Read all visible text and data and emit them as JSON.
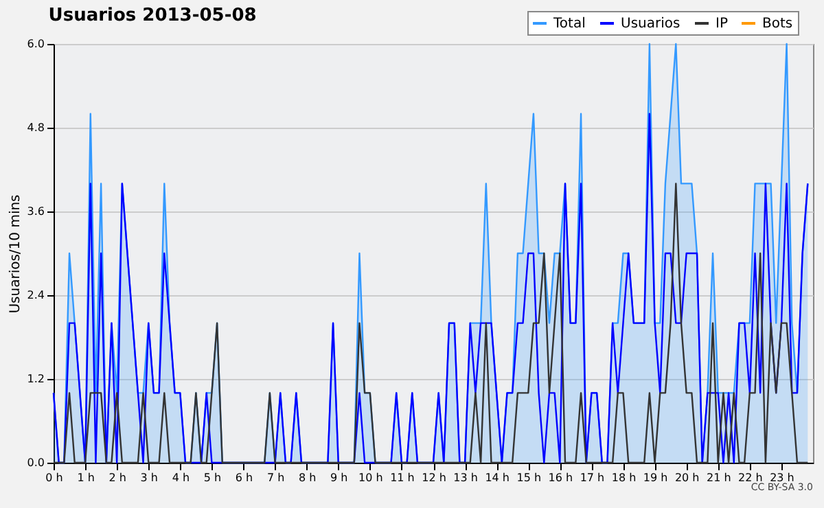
{
  "chart_data": {
    "type": "line",
    "title": "Usuarios  2013-05-08",
    "ylabel": "Usuarios/10 mins",
    "x": [
      0,
      0.167,
      0.333,
      0.5,
      0.667,
      0.833,
      1,
      1.167,
      1.333,
      1.5,
      1.667,
      1.833,
      2,
      2.167,
      2.333,
      2.5,
      2.667,
      2.833,
      3,
      3.167,
      3.333,
      3.5,
      3.667,
      3.833,
      4,
      4.167,
      4.333,
      4.5,
      4.667,
      4.833,
      5,
      5.167,
      5.333,
      5.5,
      5.667,
      5.833,
      6,
      6.167,
      6.333,
      6.5,
      6.667,
      6.833,
      7,
      7.167,
      7.333,
      7.5,
      7.667,
      7.833,
      8,
      8.167,
      8.333,
      8.5,
      8.667,
      8.833,
      9,
      9.167,
      9.333,
      9.5,
      9.667,
      9.833,
      10,
      10.167,
      10.333,
      10.5,
      10.667,
      10.833,
      11,
      11.167,
      11.333,
      11.5,
      11.667,
      11.833,
      12,
      12.167,
      12.333,
      12.5,
      12.667,
      12.833,
      13,
      13.167,
      13.333,
      13.5,
      13.667,
      13.833,
      14,
      14.167,
      14.333,
      14.5,
      14.667,
      14.833,
      15,
      15.167,
      15.333,
      15.5,
      15.667,
      15.833,
      16,
      16.167,
      16.333,
      16.5,
      16.667,
      16.833,
      17,
      17.167,
      17.333,
      17.5,
      17.667,
      17.833,
      18,
      18.167,
      18.333,
      18.5,
      18.667,
      18.833,
      19,
      19.167,
      19.333,
      19.5,
      19.667,
      19.833,
      20,
      20.167,
      20.333,
      20.5,
      20.667,
      20.833,
      21,
      21.167,
      21.333,
      21.5,
      21.667,
      21.833,
      22,
      22.167,
      22.333,
      22.5,
      22.667,
      22.833,
      23,
      23.167,
      23.333,
      23.5,
      23.667,
      23.833
    ],
    "series": [
      {
        "name": "Total",
        "type": "area",
        "color": "#3399ff",
        "values": [
          1,
          0,
          0,
          3,
          2,
          1,
          0,
          5,
          1,
          4,
          0,
          2,
          1,
          4,
          3,
          2,
          1,
          1,
          2,
          1,
          1,
          4,
          2,
          1,
          1,
          0,
          0,
          1,
          0,
          1,
          1,
          2,
          0,
          0,
          0,
          0,
          0,
          0,
          0,
          0,
          0,
          1,
          0,
          1,
          0,
          0,
          1,
          0,
          0,
          0,
          0,
          0,
          0,
          2,
          0,
          0,
          0,
          0,
          3,
          1,
          1,
          0,
          0,
          0,
          0,
          1,
          0,
          0,
          1,
          0,
          0,
          0,
          0,
          1,
          0,
          2,
          2,
          0,
          0,
          2,
          2,
          2,
          4,
          2,
          1,
          0,
          1,
          1,
          3,
          3,
          4,
          5,
          3,
          3,
          2,
          3,
          3,
          4,
          2,
          2,
          5,
          0,
          1,
          1,
          0,
          0,
          2,
          2,
          3,
          3,
          2,
          2,
          2,
          6,
          2,
          2,
          4,
          5,
          6,
          4,
          4,
          4,
          3,
          0,
          1,
          3,
          1,
          1,
          1,
          1,
          2,
          2,
          2,
          4,
          4,
          4,
          4,
          2,
          4,
          6,
          2,
          1,
          3,
          4
        ]
      },
      {
        "name": "Usuarios",
        "color": "#0000ff",
        "values": [
          1,
          0,
          0,
          2,
          2,
          1,
          0,
          4,
          0,
          3,
          0,
          2,
          0,
          4,
          3,
          2,
          1,
          0,
          2,
          1,
          1,
          3,
          2,
          1,
          1,
          0,
          0,
          0,
          0,
          1,
          0,
          0,
          0,
          0,
          0,
          0,
          0,
          0,
          0,
          0,
          0,
          0,
          0,
          1,
          0,
          0,
          1,
          0,
          0,
          0,
          0,
          0,
          0,
          2,
          0,
          0,
          0,
          0,
          1,
          0,
          0,
          0,
          0,
          0,
          0,
          1,
          0,
          0,
          1,
          0,
          0,
          0,
          0,
          1,
          0,
          2,
          2,
          0,
          0,
          2,
          1,
          2,
          2,
          2,
          1,
          0,
          1,
          1,
          2,
          2,
          3,
          3,
          1,
          0,
          1,
          1,
          0,
          4,
          2,
          2,
          4,
          0,
          1,
          1,
          0,
          0,
          2,
          1,
          2,
          3,
          2,
          2,
          2,
          5,
          2,
          1,
          3,
          3,
          2,
          2,
          3,
          3,
          3,
          0,
          1,
          1,
          1,
          0,
          1,
          0,
          2,
          2,
          1,
          3,
          1,
          4,
          2,
          1,
          2,
          4,
          1,
          1,
          3,
          4
        ]
      },
      {
        "name": "IP",
        "color": "#333333",
        "values": [
          0,
          0,
          0,
          1,
          0,
          0,
          0,
          1,
          1,
          1,
          0,
          0,
          1,
          0,
          0,
          0,
          0,
          1,
          0,
          0,
          0,
          1,
          0,
          0,
          0,
          0,
          0,
          1,
          0,
          0,
          1,
          2,
          0,
          0,
          0,
          0,
          0,
          0,
          0,
          0,
          0,
          1,
          0,
          0,
          0,
          0,
          0,
          0,
          0,
          0,
          0,
          0,
          0,
          0,
          0,
          0,
          0,
          0,
          2,
          1,
          1,
          0,
          0,
          0,
          0,
          0,
          0,
          0,
          0,
          0,
          0,
          0,
          0,
          0,
          0,
          0,
          0,
          0,
          0,
          0,
          1,
          0,
          2,
          0,
          0,
          0,
          0,
          0,
          1,
          1,
          1,
          2,
          2,
          3,
          1,
          2,
          3,
          0,
          0,
          0,
          1,
          0,
          0,
          0,
          0,
          0,
          0,
          1,
          1,
          0,
          0,
          0,
          0,
          1,
          0,
          1,
          1,
          2,
          4,
          2,
          1,
          1,
          0,
          0,
          0,
          2,
          0,
          1,
          0,
          1,
          0,
          0,
          1,
          1,
          3,
          0,
          2,
          1,
          2,
          2,
          1,
          0,
          0,
          0
        ]
      },
      {
        "name": "Bots",
        "color": "#ff9900",
        "values": [
          null,
          null,
          null,
          null,
          null,
          null,
          null,
          null,
          null,
          null,
          null,
          null,
          null,
          null,
          null,
          null,
          null,
          null,
          null,
          null,
          null,
          null,
          null,
          null,
          null,
          null,
          null,
          null,
          null,
          null,
          null,
          null,
          null,
          null,
          null,
          null,
          null,
          null,
          null,
          null,
          null,
          null,
          null,
          null,
          null,
          null,
          null,
          null,
          null,
          null,
          null,
          null,
          null,
          null,
          null,
          null,
          null,
          null,
          null,
          null,
          null,
          null,
          null,
          null,
          null,
          null,
          null,
          null,
          null,
          null,
          null,
          null,
          null,
          null,
          null,
          null,
          null,
          null,
          null,
          null,
          null,
          null,
          null,
          null,
          null,
          null,
          null,
          null,
          null,
          null,
          null,
          null,
          null,
          null,
          null,
          null,
          null,
          null,
          null,
          null,
          null,
          null,
          null,
          null,
          null,
          null,
          null,
          null,
          null,
          null,
          null,
          null,
          null,
          null,
          null,
          null,
          null,
          null,
          null,
          null,
          null,
          null,
          null,
          null,
          null,
          null,
          null,
          null,
          null,
          null,
          null,
          null,
          null,
          null,
          null,
          null,
          null,
          null,
          null,
          null,
          null,
          null,
          null,
          null
        ]
      }
    ],
    "xlim": [
      0,
      24
    ],
    "xticks": [
      {
        "value": 0,
        "label": "0 h"
      },
      {
        "value": 1,
        "label": "1 h"
      },
      {
        "value": 2,
        "label": "2 h"
      },
      {
        "value": 3,
        "label": "3 h"
      },
      {
        "value": 4,
        "label": "4 h"
      },
      {
        "value": 5,
        "label": "5 h"
      },
      {
        "value": 6,
        "label": "6 h"
      },
      {
        "value": 7,
        "label": "7 h"
      },
      {
        "value": 8,
        "label": "8 h"
      },
      {
        "value": 9,
        "label": "9 h"
      },
      {
        "value": 10,
        "label": "10 h"
      },
      {
        "value": 11,
        "label": "11 h"
      },
      {
        "value": 12,
        "label": "12 h"
      },
      {
        "value": 13,
        "label": "13 h"
      },
      {
        "value": 14,
        "label": "14 h"
      },
      {
        "value": 15,
        "label": "15 h"
      },
      {
        "value": 16,
        "label": "16 h"
      },
      {
        "value": 17,
        "label": "17 h"
      },
      {
        "value": 18,
        "label": "18 h"
      },
      {
        "value": 19,
        "label": "19 h"
      },
      {
        "value": 20,
        "label": "20 h"
      },
      {
        "value": 21,
        "label": "21 h"
      },
      {
        "value": 22,
        "label": "22 h"
      },
      {
        "value": 23,
        "label": "23 h"
      }
    ],
    "ylim": [
      0,
      6
    ],
    "yticks": [
      {
        "value": 0,
        "label": "0.0"
      },
      1.2,
      2.4,
      3.6,
      4.8,
      {
        "value": 6,
        "label": "6.0"
      }
    ],
    "grid": "y",
    "legend": "top right",
    "annotations": [
      "CC BY-SA 3.0"
    ]
  }
}
